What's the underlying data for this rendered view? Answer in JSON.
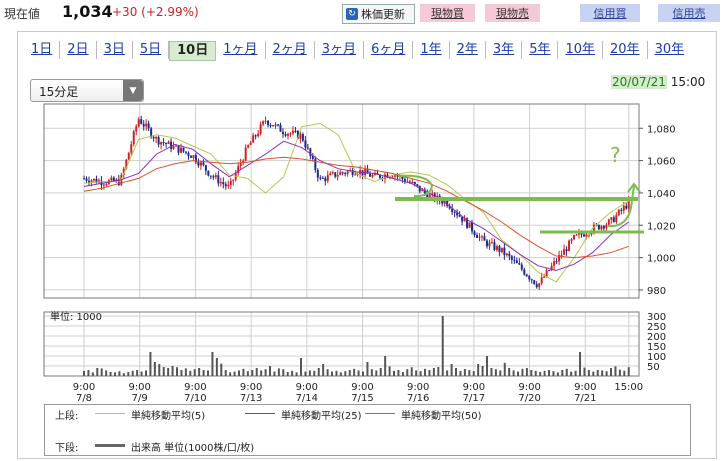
{
  "header": {
    "price_label": "現在値",
    "price_value": "1,034",
    "price_change": "+30 (+2.99%)",
    "refresh_label": "株価更新",
    "buttons": [
      "現物買",
      "現物売",
      "信用買",
      "信用売"
    ]
  },
  "tabs": [
    "1日",
    "2日",
    "3日",
    "5日",
    "10日",
    "1ヶ月",
    "2ヶ月",
    "3ヶ月",
    "6ヶ月",
    "1年",
    "2年",
    "3年",
    "5年",
    "10年",
    "20年",
    "30年"
  ],
  "active_tab": "10日",
  "interval_select": "15分足",
  "timestamp": {
    "date": "20/07/21",
    "time": "15:00"
  },
  "legend": {
    "upper_label": "上段:",
    "lower_label": "下段:",
    "ma5": "単純移動平均(5)",
    "ma25": "単純移動平均(25)",
    "ma50": "単純移動平均(50)",
    "volume": "出来高 単位(1000株/口/枚)"
  },
  "colors": {
    "ma5": "#b7c84a",
    "ma25": "#8a2fc2",
    "ma50": "#d9532b",
    "up": "#d02020",
    "down": "#1c2a8a",
    "annotation": "#7dbb4e"
  },
  "chart_data": [
    {
      "type": "candlestick",
      "title": "",
      "ylim": [
        975,
        1095
      ],
      "yticks": [
        980,
        1000,
        1020,
        1040,
        1060,
        1080
      ],
      "x_ticks": [
        {
          "time": "9:00",
          "date": "7/8"
        },
        {
          "time": "9:00",
          "date": "7/9"
        },
        {
          "time": "9:00",
          "date": "7/10"
        },
        {
          "time": "9:00",
          "date": "7/13"
        },
        {
          "time": "9:00",
          "date": "7/14"
        },
        {
          "time": "9:00",
          "date": "7/15"
        },
        {
          "time": "9:00",
          "date": "7/16"
        },
        {
          "time": "9:00",
          "date": "7/17"
        },
        {
          "time": "9:00",
          "date": "7/20"
        },
        {
          "time": "9:00",
          "date": "7/21"
        },
        {
          "time": "15:00",
          "date": ""
        }
      ],
      "series": [
        {
          "name": "単純移動平均(5)",
          "values": [
            1046,
            1047,
            1047,
            1073,
            1076,
            1074,
            1069,
            1064,
            1051,
            1049,
            1040,
            1050,
            1081,
            1083,
            1076,
            1052,
            1047,
            1051,
            1053,
            1051,
            1045,
            1036,
            1028,
            1011,
            1002,
            991,
            985,
            1000,
            1018,
            1028,
            1035
          ]
        },
        {
          "name": "単純移動平均(25)",
          "values": [
            1044,
            1046,
            1048,
            1052,
            1064,
            1070,
            1067,
            1058,
            1050,
            1057,
            1064,
            1072,
            1068,
            1060,
            1055,
            1053,
            1052,
            1049,
            1046,
            1040,
            1033,
            1024,
            1018,
            1010,
            1002,
            995,
            992,
            996,
            1003,
            1014,
            1022
          ]
        },
        {
          "name": "単純移動平均(50)",
          "values": [
            1041,
            1043,
            1046,
            1049,
            1055,
            1058,
            1060,
            1059,
            1058,
            1059,
            1061,
            1062,
            1061,
            1059,
            1057,
            1056,
            1054,
            1052,
            1049,
            1046,
            1041,
            1035,
            1029,
            1022,
            1014,
            1007,
            1001,
            1000,
            1001,
            1003,
            1007
          ]
        }
      ],
      "price_path": [
        1049,
        1047,
        1047,
        1086,
        1073,
        1068,
        1063,
        1051,
        1043,
        1068,
        1085,
        1078,
        1075,
        1048,
        1052,
        1054,
        1050,
        1052,
        1046,
        1038,
        1034,
        1022,
        1010,
        1004,
        994,
        983,
        998,
        1012,
        1018,
        1022,
        1034
      ]
    },
    {
      "type": "bar",
      "title": "",
      "ylabel": "単位: 1000",
      "ylim": [
        0,
        320
      ],
      "yticks": [
        50,
        100,
        150,
        200,
        250,
        300
      ],
      "values": [
        25,
        30,
        18,
        40,
        38,
        28,
        20,
        18,
        24,
        14,
        20,
        26,
        30,
        22,
        28,
        120,
        70,
        60,
        45,
        40,
        50,
        44,
        30,
        38,
        26,
        34,
        40,
        30,
        28,
        120,
        90,
        62,
        30,
        18,
        22,
        28,
        36,
        24,
        30,
        40,
        28,
        34,
        50,
        22,
        38,
        34,
        20,
        26,
        18,
        90,
        22,
        28,
        26,
        40,
        60,
        34,
        22,
        26,
        18,
        24,
        30,
        36,
        28,
        22,
        70,
        34,
        28,
        40,
        100,
        48,
        26,
        30,
        20,
        34,
        44,
        28,
        24,
        36,
        30,
        40,
        45,
        300,
        28,
        60,
        40,
        25,
        35,
        30,
        24,
        60,
        50,
        100,
        40,
        34,
        28,
        66,
        40,
        28,
        22,
        36,
        40,
        30,
        26,
        20,
        26,
        30,
        24,
        18,
        30,
        36,
        22,
        26,
        120,
        42,
        30,
        22,
        30,
        28,
        24,
        40,
        48,
        32,
        26,
        44
      ]
    }
  ]
}
